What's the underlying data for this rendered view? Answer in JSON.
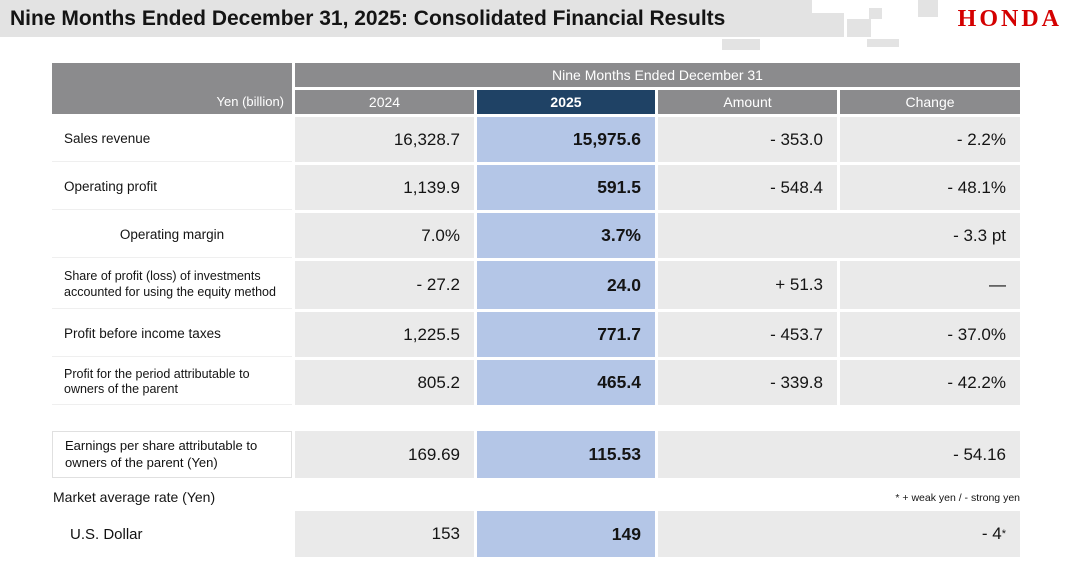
{
  "title": "Nine Months Ended December 31, 2025: Consolidated Financial Results",
  "logo": "HONDA",
  "colors": {
    "honda_red": "#d40000",
    "header_gray": "#8b8b8d",
    "navy_2025": "#1f4265",
    "light_blue_2025": "#b4c6e7",
    "cell_gray": "#eaeaea",
    "title_band_gray": "#e3e3e3"
  },
  "table": {
    "unit_label": "Yen (billion)",
    "span_header": "Nine Months Ended December 31",
    "col_headers": [
      "2024",
      "2025",
      "Amount",
      "Change"
    ],
    "rows": [
      {
        "label": "Sales revenue",
        "y2024": "16,328.7",
        "y2025": "15,975.6",
        "amount": "- 353.0",
        "change": "- 2.2%"
      },
      {
        "label": "Operating profit",
        "y2024": "1,139.9",
        "y2025": "591.5",
        "amount": "- 548.4",
        "change": "- 48.1%"
      },
      {
        "label": "Operating margin",
        "y2024": "7.0%",
        "y2025": "3.7%",
        "amount": "",
        "change": "- 3.3 pt"
      },
      {
        "label": "Share of profit (loss) of investments accounted for using the equity method",
        "y2024": "- 27.2",
        "y2025": "24.0",
        "amount": "+ 51.3",
        "change": "—"
      },
      {
        "label": "Profit before income taxes",
        "y2024": "1,225.5",
        "y2025": "771.7",
        "amount": "- 453.7",
        "change": "- 37.0%"
      },
      {
        "label": "Profit for the period attributable to owners of the parent",
        "y2024": "805.2",
        "y2025": "465.4",
        "amount": "- 339.8",
        "change": "- 42.2%"
      }
    ]
  },
  "eps": {
    "label": "Earnings per share attributable to owners of the parent (Yen)",
    "y2024": "169.69",
    "y2025": "115.53",
    "change": "- 54.16"
  },
  "market_rate": {
    "label": "Market average rate (Yen)",
    "footnote": "* + weak yen / - strong yen",
    "usd": {
      "label": "U.S. Dollar",
      "y2024": "153",
      "y2025": "149",
      "change": "- 4",
      "change_sup": "*"
    }
  }
}
